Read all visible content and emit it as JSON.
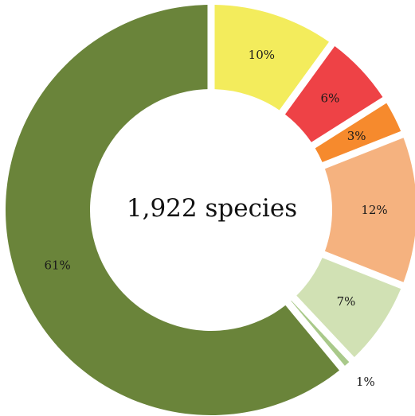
{
  "chart_data": {
    "type": "pie",
    "variant": "donut",
    "center_text": "1,922 species",
    "slices": [
      {
        "value": 10,
        "label": "10%",
        "color": "#f3ec5c"
      },
      {
        "value": 6,
        "label": "6%",
        "color": "#ee4246"
      },
      {
        "value": 3,
        "label": "3%",
        "color": "#f68a2d"
      },
      {
        "value": 12,
        "label": "12%",
        "color": "#f5b27f"
      },
      {
        "value": 7,
        "label": "7%",
        "color": "#d1e1b4"
      },
      {
        "value": 1,
        "label": "1%",
        "color": "#a9c98a"
      },
      {
        "value": 61,
        "label": "61%",
        "color": "#6a843a"
      }
    ]
  }
}
